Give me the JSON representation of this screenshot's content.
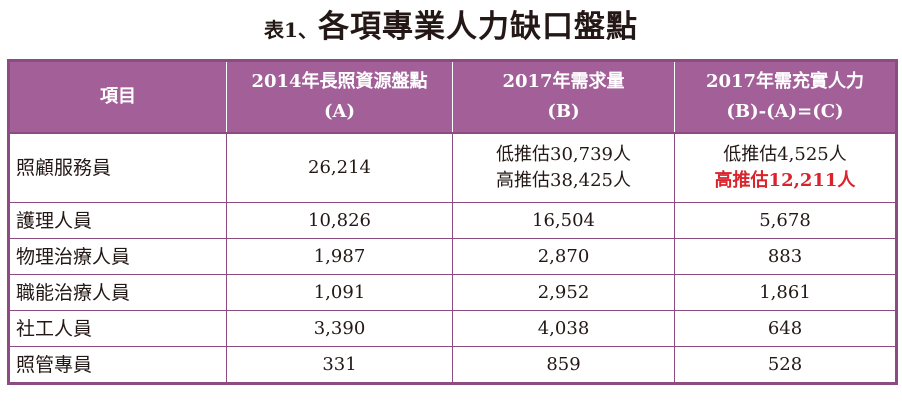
{
  "title": {
    "prefix": "表1、",
    "main": "各項專業人力缺口盤點"
  },
  "header": {
    "col1": "項目",
    "col2_line1": "2014年長照資源盤點",
    "col2_line2": "(A)",
    "col3_line1": "2017年需求量",
    "col3_line2": "(B)",
    "col4_line1": "2017年需充實人力",
    "col4_line2": "(B)-(A)=(C)"
  },
  "rows": [
    {
      "name": "照顧服務員",
      "a": "26,214",
      "b_line1": "低推估30,739人",
      "b_line2": "高推估38,425人",
      "c_line1": "低推估4,525人",
      "c_line2": "高推估12,211人"
    },
    {
      "name": "護理人員",
      "a": "10,826",
      "b": "16,504",
      "c": "5,678"
    },
    {
      "name": "物理治療人員",
      "a": "1,987",
      "b": "2,870",
      "c": "883"
    },
    {
      "name": "職能治療人員",
      "a": "1,091",
      "b": "2,952",
      "c": "1,861"
    },
    {
      "name": "社工人員",
      "a": "3,390",
      "b": "4,038",
      "c": "648"
    },
    {
      "name": "照管專員",
      "a": "331",
      "b": "859",
      "c": "528"
    }
  ],
  "colors": {
    "header_bg": "#a25f98",
    "border": "#8d4b83",
    "highlight": "#d9232d"
  }
}
